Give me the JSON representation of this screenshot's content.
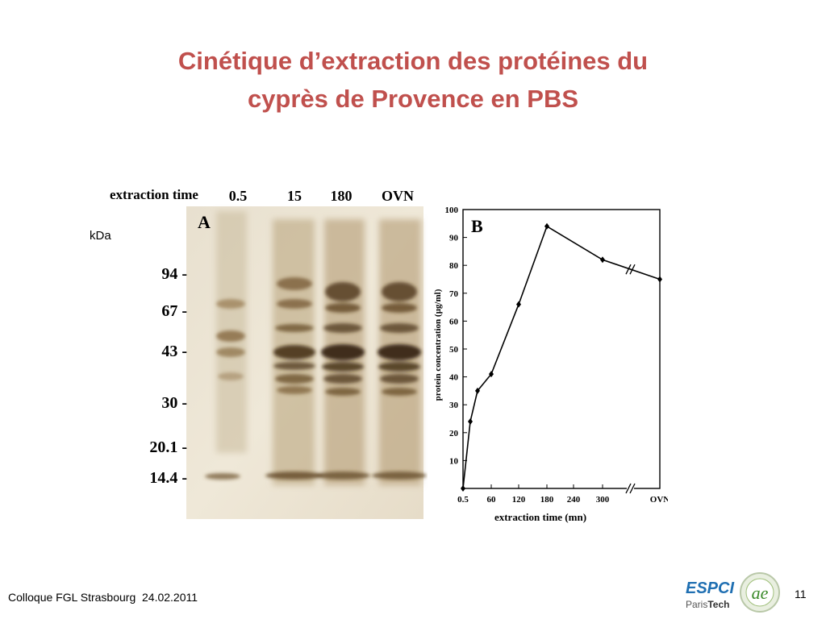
{
  "slide": {
    "title_line1": "Cinétique d’extraction des protéines du",
    "title_line2": "cyprès de Provence en PBS",
    "kda_label": "kDa",
    "footer": "Colloque FGL Strasbourg  24.02.2011",
    "page_number": "11",
    "accent_color": "#c0504d"
  },
  "gel": {
    "panel_label": "A",
    "header_label": "extraction time",
    "lanes": [
      "0.5",
      "15",
      "180",
      "OVN"
    ],
    "markers": [
      "94 -",
      "67 -",
      "43 -",
      "30 -",
      "20.1 -",
      "14.4 -"
    ]
  },
  "logo": {
    "text_main": "ESPCI",
    "text_sub_regular": "Paris",
    "text_sub_bold": "Tech",
    "emblem_text": "ae"
  },
  "chart_data": {
    "type": "line",
    "panel_label": "B",
    "xlabel": "extraction time (mn)",
    "ylabel": "protein concentration (µg/ml)",
    "x_tick_labels": [
      "0.5",
      "60",
      "120",
      "180",
      "240",
      "300",
      "OVN"
    ],
    "x_axis_break": true,
    "ylim": [
      0,
      100
    ],
    "y_ticks": [
      10,
      20,
      30,
      40,
      50,
      60,
      70,
      80,
      90,
      100
    ],
    "grid": false,
    "points": [
      {
        "x": "0.5",
        "y": 0
      },
      {
        "x": "15",
        "y": 24
      },
      {
        "x": "30",
        "y": 35
      },
      {
        "x": "60",
        "y": 41
      },
      {
        "x": "120",
        "y": 66
      },
      {
        "x": "180",
        "y": 94
      },
      {
        "x": "300",
        "y": 82
      },
      {
        "x": "OVN",
        "y": 75
      }
    ]
  }
}
